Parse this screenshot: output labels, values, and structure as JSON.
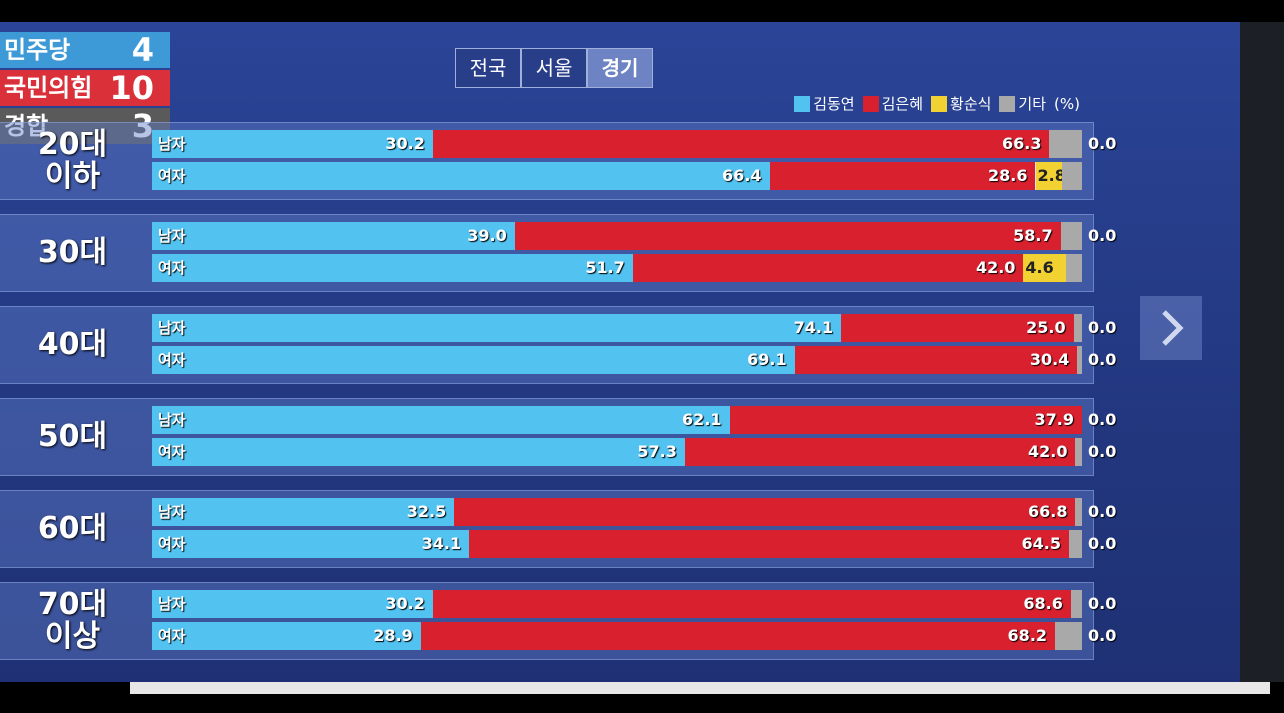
{
  "tabs": [
    "전국",
    "서울",
    "경기"
  ],
  "scoreboard": [
    {
      "party": "민주당",
      "count": "4"
    },
    {
      "party": "국민의힘",
      "count": "10"
    },
    {
      "party": "경합",
      "count": "3"
    }
  ],
  "chart_data": {
    "type": "bar",
    "orientation": "horizontal",
    "stacked": true,
    "unit": "(%)",
    "legend": "top-right",
    "xlim": [
      0,
      100
    ],
    "groups": [
      "20대\n이하",
      "30대",
      "40대",
      "50대",
      "60대",
      "70대\n이상"
    ],
    "categories": [
      "남자",
      "여자",
      "남자",
      "여자",
      "남자",
      "여자",
      "남자",
      "여자",
      "남자",
      "여자",
      "남자",
      "여자"
    ],
    "series": [
      {
        "name": "김동연",
        "color": "#52c3f1",
        "values": [
          30.2,
          66.4,
          39.0,
          51.7,
          74.1,
          69.1,
          62.1,
          57.3,
          32.5,
          34.1,
          30.2,
          28.9
        ],
        "value_labels": [
          "30.2",
          "66.4",
          "39.0",
          "51.7",
          "74.1",
          "69.1",
          "62.1",
          "57.3",
          "32.5",
          "34.1",
          "30.2",
          "28.9"
        ]
      },
      {
        "name": "김은혜",
        "color": "#d8202f",
        "values": [
          66.3,
          28.6,
          58.7,
          42.0,
          25.0,
          30.4,
          37.9,
          42.0,
          66.8,
          64.5,
          68.6,
          68.2
        ],
        "value_labels": [
          "66.3",
          "28.6",
          "58.7",
          "42.0",
          "25.0",
          "30.4",
          "37.9",
          "42.0",
          "66.8",
          "64.5",
          "68.6",
          "68.2"
        ]
      },
      {
        "name": "황순식",
        "color": "#f2d232",
        "values": [
          0.0,
          2.8,
          0.0,
          4.6,
          0.0,
          0.0,
          0.0,
          0.0,
          0.0,
          0.0,
          0.0,
          0.0
        ],
        "value_labels": [
          "0.0",
          "2.8",
          "0.0",
          "4.6",
          "0.0",
          "0.0",
          "0.0",
          "0.0",
          "0.0",
          "0.0",
          "0.0",
          "0.0"
        ]
      },
      {
        "name": "기타",
        "color": "#a9a9a9",
        "values": [
          3.5,
          2.2,
          2.3,
          1.7,
          0.9,
          0.5,
          0.0,
          0.7,
          0.7,
          1.4,
          1.2,
          2.9
        ]
      }
    ]
  }
}
